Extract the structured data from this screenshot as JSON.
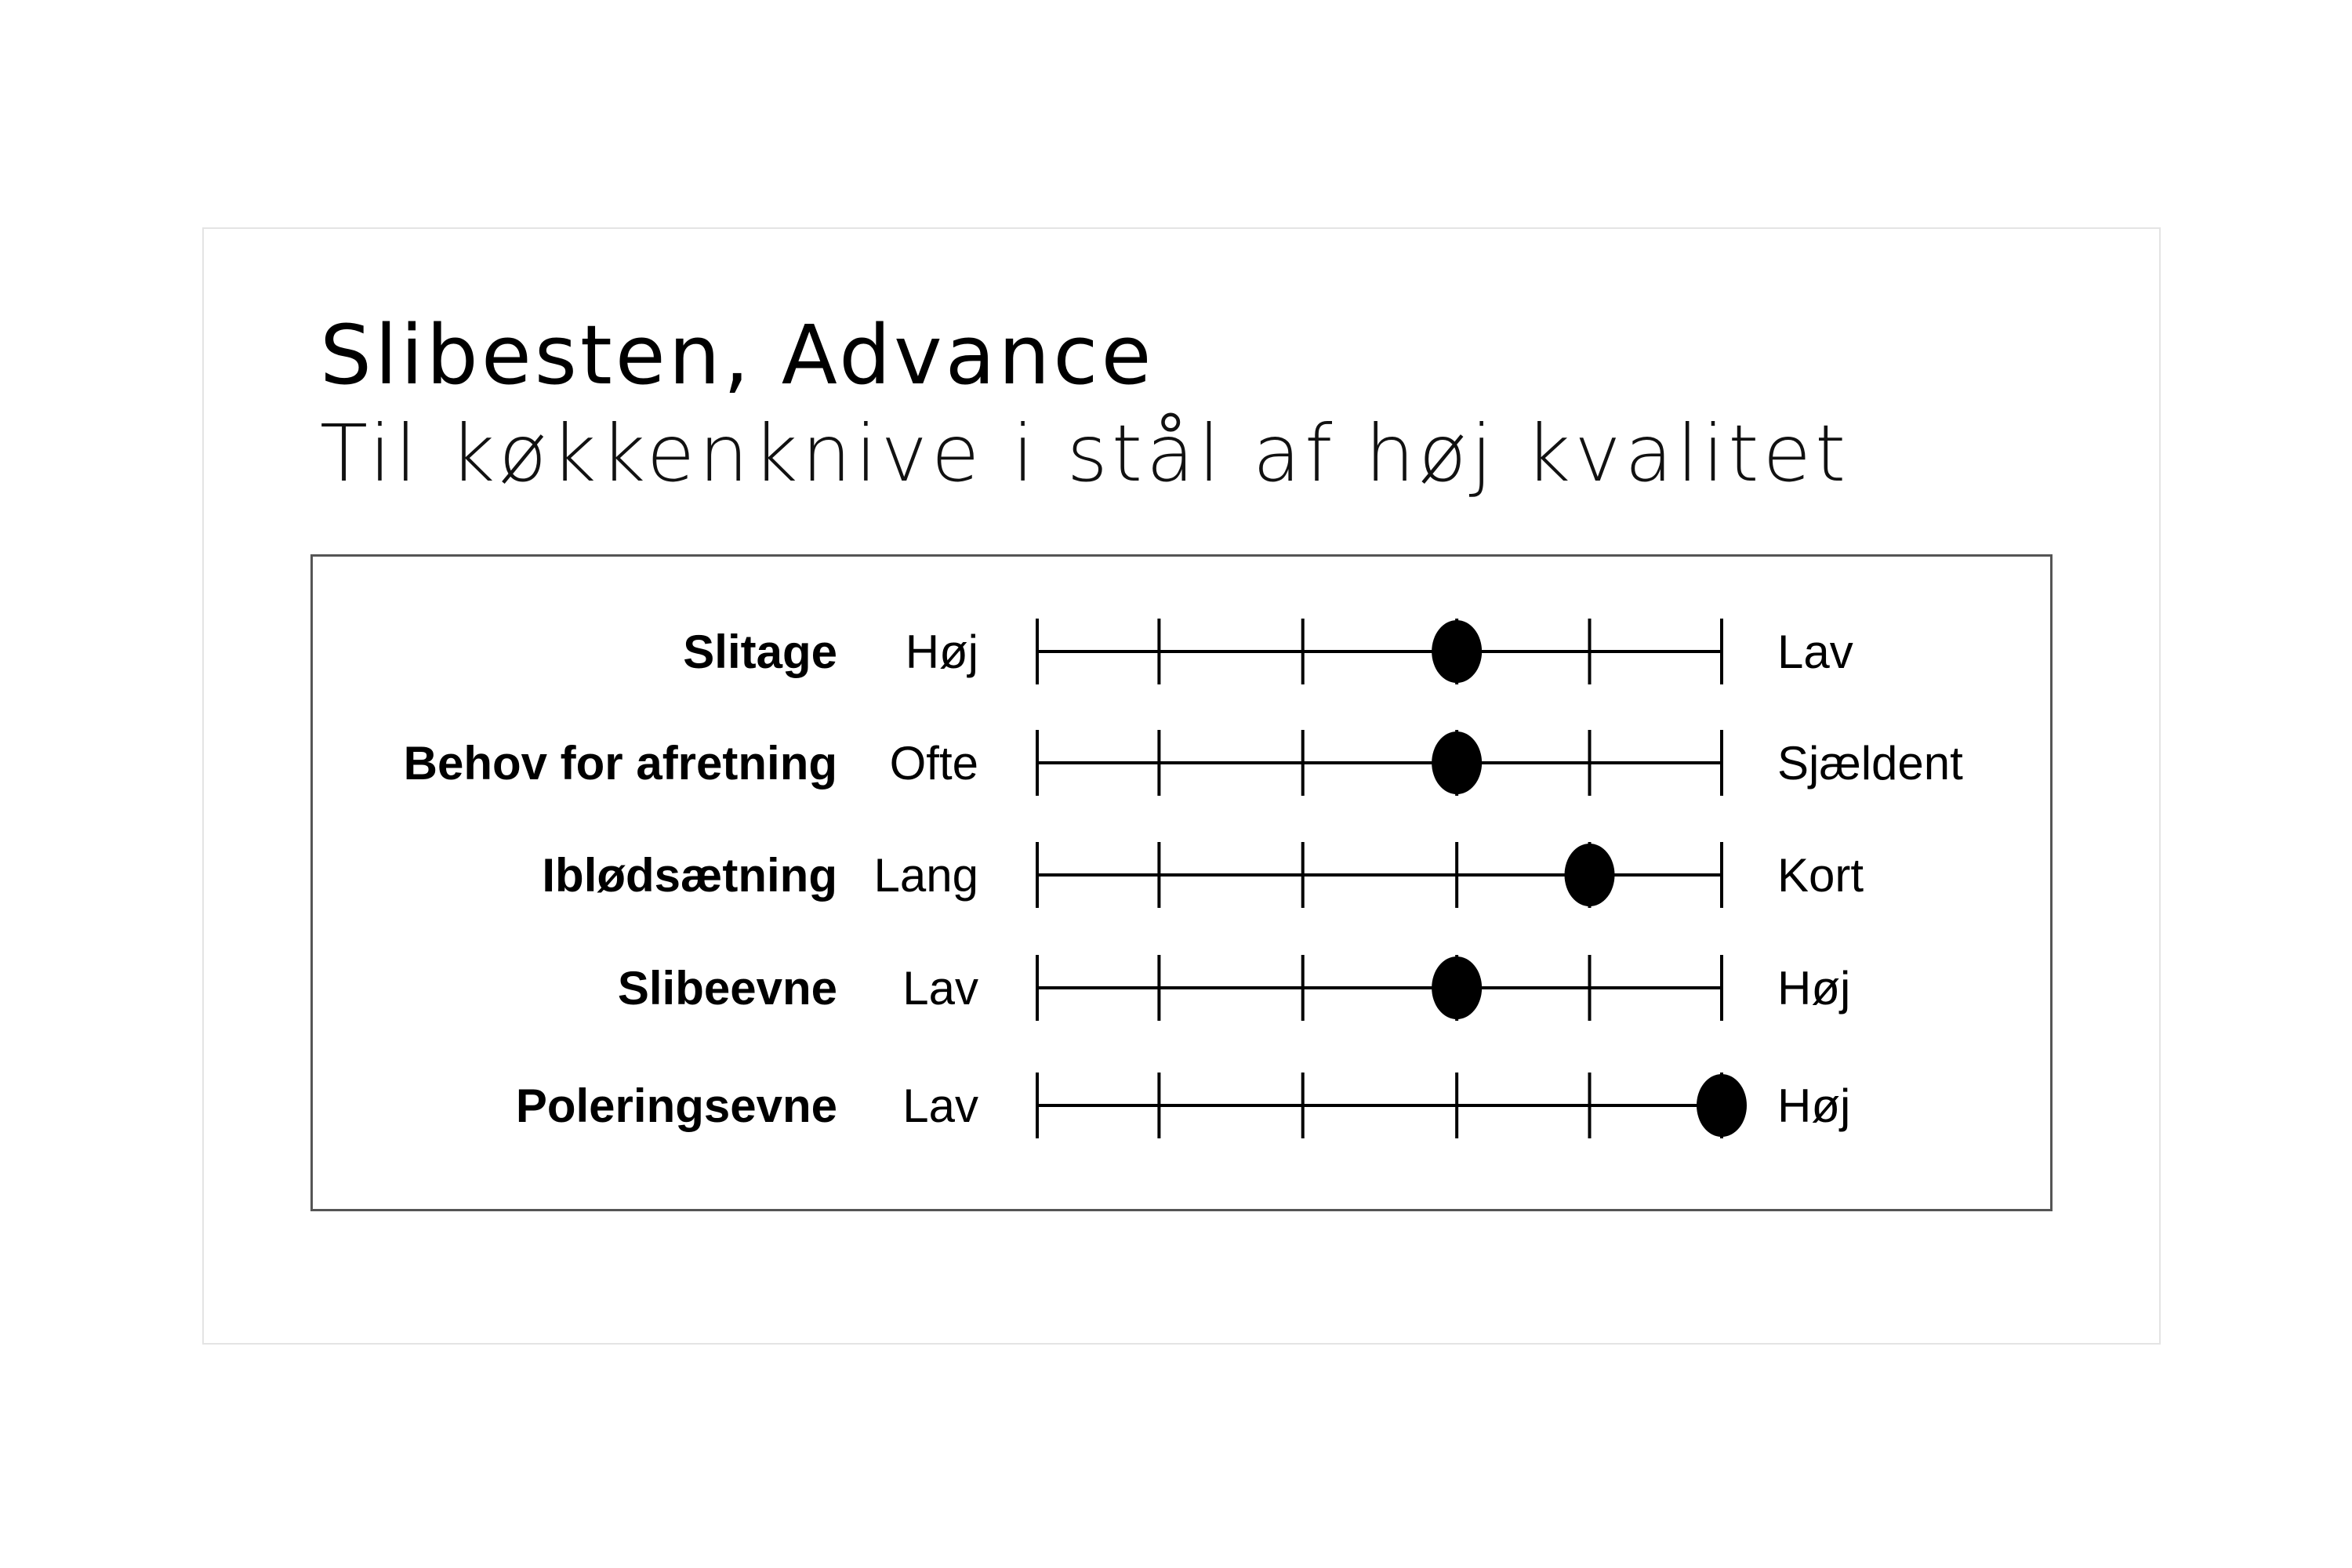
{
  "title": "Slibesten, Advance",
  "subtitle": "Til køkkenknive i stål af høj kvalitet",
  "chart_data": {
    "type": "scatter",
    "scale": {
      "min": 0,
      "max": 5,
      "ticks": 6
    },
    "rows": [
      {
        "label": "Slitage",
        "left": "Høj",
        "right": "Lav",
        "value": 3
      },
      {
        "label": "Behov for afretning",
        "left": "Ofte",
        "right": "Sjældent",
        "value": 3
      },
      {
        "label": "Iblødsætning",
        "left": "Lang",
        "right": "Kort",
        "value": 4
      },
      {
        "label": "Slibeevne",
        "left": "Lav",
        "right": "Høj",
        "value": 3
      },
      {
        "label": "Poleringsevne",
        "left": "Lav",
        "right": "Høj",
        "value": 5
      }
    ]
  }
}
